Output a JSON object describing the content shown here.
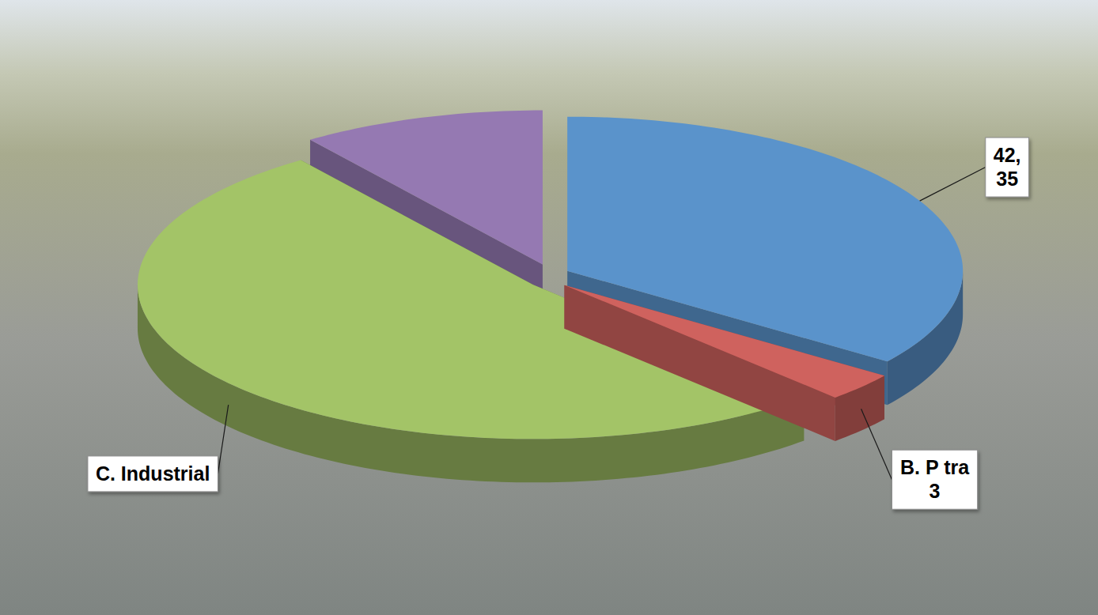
{
  "chart_data": {
    "type": "pie",
    "categories": [
      "42,",
      "B. P tra",
      "C. Industrial",
      null
    ],
    "values": [
      35,
      3,
      52,
      10
    ],
    "value_labels": [
      "35",
      "3",
      null,
      null
    ],
    "colors": [
      "#5a93cb",
      "#cf625e",
      "#a3c467",
      "#9579b2"
    ],
    "data_labels": true
  }
}
